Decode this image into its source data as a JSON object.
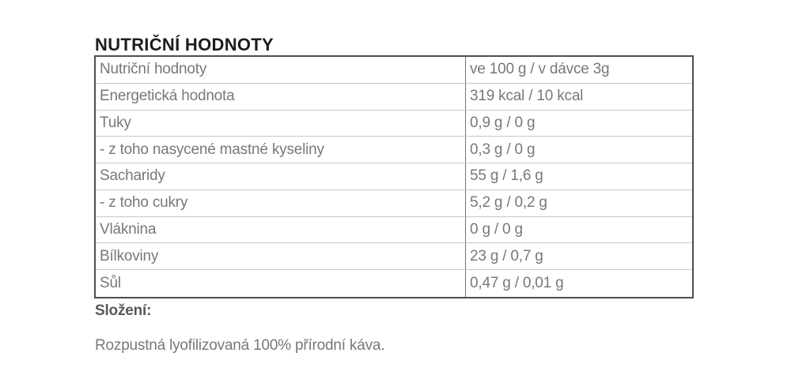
{
  "page": {
    "title": "NUTRIČNÍ HODNOTY",
    "ingredients_heading": "Složení:",
    "ingredients_text": "Rozpustná lyofilizovaná 100% přírodní káva."
  },
  "table": {
    "rows": [
      {
        "label": "Nutriční hodnoty",
        "value": "ve 100 g / v dávce 3g"
      },
      {
        "label": "Energetická hodnota",
        "value": "319 kcal / 10 kcal"
      },
      {
        "label": "Tuky",
        "value": "0,9 g / 0 g"
      },
      {
        "label": "- z toho nasycené mastné kyseliny",
        "value": "0,3 g / 0 g"
      },
      {
        "label": "Sacharidy",
        "value": "55 g / 1,6 g"
      },
      {
        "label": "- z toho cukry",
        "value": "5,2 g / 0,2 g"
      },
      {
        "label": "Vláknina",
        "value": "0 g / 0 g"
      },
      {
        "label": "Bílkoviny",
        "value": "23 g / 0,7 g"
      },
      {
        "label": "Sůl",
        "value": "0,47 g / 0,01 g"
      }
    ]
  },
  "colors": {
    "title_text": "#1d1d1b",
    "table_text": "#77787b",
    "outer_border": "#4d4e50",
    "row_divider": "#c7c7c9",
    "column_divider": "#737476",
    "background": "#ffffff"
  }
}
